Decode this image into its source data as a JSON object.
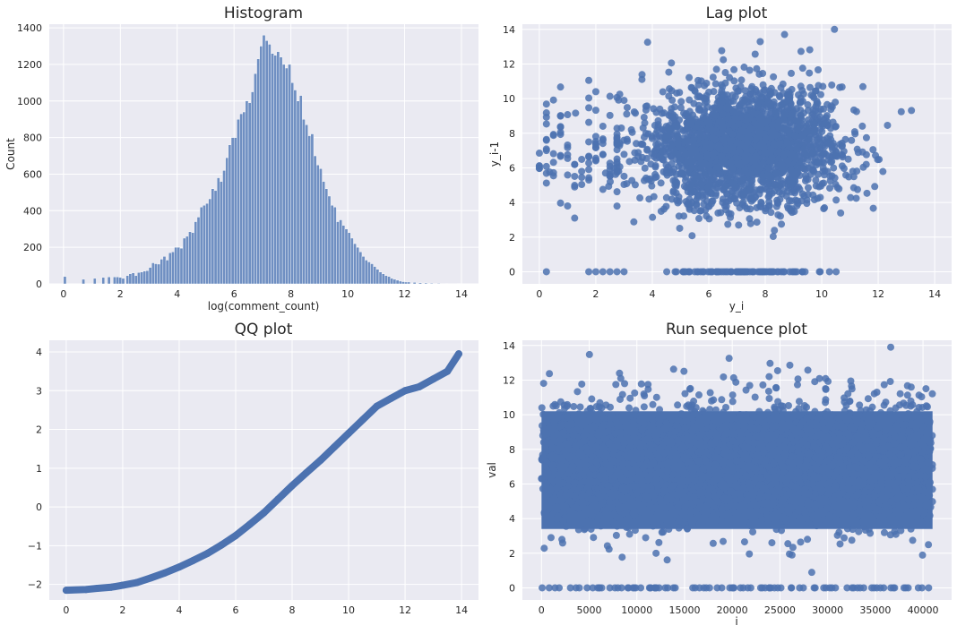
{
  "colors": {
    "panel_bg": "#eaeaf2",
    "grid": "#ffffff",
    "series": "#4c72b0",
    "bar": "#6f8fc2"
  },
  "chart_data": [
    {
      "type": "bar",
      "title": "Histogram",
      "xlabel": "log(comment_count)",
      "ylabel": "Count",
      "xlim": [
        -0.5,
        14.6
      ],
      "ylim": [
        0,
        1420
      ],
      "xticks": [
        "0",
        "2",
        "4",
        "6",
        "8",
        "10",
        "12",
        "14"
      ],
      "yticks": [
        "0",
        "200",
        "400",
        "600",
        "800",
        "1000",
        "1200",
        "1400"
      ],
      "bins": [
        [
          0.05,
          40
        ],
        [
          0.7,
          25
        ],
        [
          1.1,
          30
        ],
        [
          1.4,
          35
        ],
        [
          1.6,
          38
        ],
        [
          1.8,
          38
        ],
        [
          1.9,
          38
        ],
        [
          2.0,
          35
        ],
        [
          2.1,
          30
        ],
        [
          2.25,
          45
        ],
        [
          2.35,
          55
        ],
        [
          2.45,
          60
        ],
        [
          2.55,
          45
        ],
        [
          2.65,
          62
        ],
        [
          2.75,
          65
        ],
        [
          2.85,
          70
        ],
        [
          2.95,
          72
        ],
        [
          3.05,
          90
        ],
        [
          3.15,
          115
        ],
        [
          3.25,
          110
        ],
        [
          3.35,
          108
        ],
        [
          3.45,
          135
        ],
        [
          3.55,
          150
        ],
        [
          3.65,
          130
        ],
        [
          3.75,
          170
        ],
        [
          3.85,
          175
        ],
        [
          3.95,
          200
        ],
        [
          4.05,
          200
        ],
        [
          4.15,
          195
        ],
        [
          4.25,
          250
        ],
        [
          4.35,
          260
        ],
        [
          4.45,
          285
        ],
        [
          4.55,
          280
        ],
        [
          4.65,
          340
        ],
        [
          4.75,
          365
        ],
        [
          4.85,
          420
        ],
        [
          4.95,
          430
        ],
        [
          5.05,
          440
        ],
        [
          5.15,
          465
        ],
        [
          5.25,
          520
        ],
        [
          5.35,
          510
        ],
        [
          5.45,
          580
        ],
        [
          5.55,
          560
        ],
        [
          5.65,
          620
        ],
        [
          5.75,
          690
        ],
        [
          5.85,
          760
        ],
        [
          5.95,
          800
        ],
        [
          6.05,
          800
        ],
        [
          6.15,
          900
        ],
        [
          6.25,
          930
        ],
        [
          6.35,
          940
        ],
        [
          6.45,
          1000
        ],
        [
          6.55,
          990
        ],
        [
          6.65,
          1050
        ],
        [
          6.75,
          1150
        ],
        [
          6.85,
          1230
        ],
        [
          6.95,
          1300
        ],
        [
          7.05,
          1360
        ],
        [
          7.15,
          1330
        ],
        [
          7.25,
          1310
        ],
        [
          7.35,
          1260
        ],
        [
          7.45,
          1250
        ],
        [
          7.55,
          1270
        ],
        [
          7.65,
          1240
        ],
        [
          7.75,
          1200
        ],
        [
          7.85,
          1180
        ],
        [
          7.95,
          1200
        ],
        [
          8.05,
          1100
        ],
        [
          8.15,
          1060
        ],
        [
          8.25,
          1000
        ],
        [
          8.35,
          1030
        ],
        [
          8.45,
          900
        ],
        [
          8.55,
          870
        ],
        [
          8.65,
          810
        ],
        [
          8.75,
          820
        ],
        [
          8.85,
          700
        ],
        [
          8.95,
          650
        ],
        [
          9.05,
          630
        ],
        [
          9.15,
          560
        ],
        [
          9.25,
          520
        ],
        [
          9.35,
          480
        ],
        [
          9.45,
          430
        ],
        [
          9.55,
          420
        ],
        [
          9.65,
          340
        ],
        [
          9.75,
          350
        ],
        [
          9.85,
          320
        ],
        [
          9.95,
          300
        ],
        [
          10.05,
          280
        ],
        [
          10.15,
          250
        ],
        [
          10.25,
          220
        ],
        [
          10.35,
          200
        ],
        [
          10.45,
          175
        ],
        [
          10.55,
          150
        ],
        [
          10.65,
          130
        ],
        [
          10.75,
          120
        ],
        [
          10.85,
          110
        ],
        [
          10.95,
          95
        ],
        [
          11.05,
          80
        ],
        [
          11.15,
          65
        ],
        [
          11.25,
          55
        ],
        [
          11.35,
          45
        ],
        [
          11.45,
          40
        ],
        [
          11.55,
          30
        ],
        [
          11.65,
          25
        ],
        [
          11.75,
          20
        ],
        [
          11.85,
          15
        ],
        [
          11.95,
          12
        ],
        [
          12.05,
          10
        ],
        [
          12.15,
          10
        ],
        [
          12.35,
          8
        ],
        [
          12.55,
          6
        ],
        [
          12.75,
          5
        ],
        [
          12.95,
          4
        ],
        [
          13.2,
          3
        ],
        [
          13.5,
          2
        ],
        [
          13.9,
          2
        ]
      ]
    },
    {
      "type": "scatter",
      "title": "Lag plot",
      "xlabel": "y_i",
      "ylabel": "y_i-1",
      "xlim": [
        -0.6,
        14.6
      ],
      "ylim": [
        -0.7,
        14.3
      ],
      "xticks": [
        "0",
        "2",
        "4",
        "6",
        "8",
        "10",
        "12",
        "14"
      ],
      "yticks": [
        "0",
        "2",
        "4",
        "6",
        "8",
        "10",
        "12",
        "14"
      ],
      "center": [
        7.2,
        7.2
      ],
      "spread": [
        1.7,
        1.7
      ],
      "points": 2600
    },
    {
      "type": "line",
      "title": "QQ plot",
      "xlabel": "",
      "ylabel": "",
      "xlim": [
        -0.6,
        14.6
      ],
      "ylim": [
        -2.4,
        4.3
      ],
      "xticks": [
        "0",
        "2",
        "4",
        "6",
        "8",
        "10",
        "12",
        "14"
      ],
      "yticks": [
        "−2",
        "−1",
        "0",
        "1",
        "2",
        "3",
        "4"
      ],
      "x": [
        0,
        0.7,
        1.1,
        1.6,
        2.0,
        2.5,
        3.0,
        3.5,
        4.0,
        4.5,
        5.0,
        5.5,
        6.0,
        6.5,
        7.0,
        7.5,
        8.0,
        8.5,
        9.0,
        9.5,
        10.0,
        10.5,
        11.0,
        11.5,
        12.0,
        12.5,
        13.0,
        13.5,
        13.9
      ],
      "y": [
        -2.15,
        -2.13,
        -2.1,
        -2.07,
        -2.02,
        -1.95,
        -1.83,
        -1.7,
        -1.55,
        -1.38,
        -1.2,
        -0.98,
        -0.74,
        -0.45,
        -0.15,
        0.2,
        0.55,
        0.88,
        1.2,
        1.55,
        1.9,
        2.25,
        2.6,
        2.8,
        3.0,
        3.1,
        3.3,
        3.5,
        3.95
      ]
    },
    {
      "type": "scatter",
      "title": "Run sequence plot",
      "xlabel": "i",
      "ylabel": "val",
      "xlim": [
        -2000,
        43000
      ],
      "ylim": [
        -0.7,
        14.3
      ],
      "xticks": [
        "0",
        "5000",
        "10000",
        "15000",
        "20000",
        "25000",
        "30000",
        "35000",
        "40000"
      ],
      "yticks": [
        "0",
        "2",
        "4",
        "6",
        "8",
        "10",
        "12",
        "14"
      ],
      "n": 41000,
      "points": 2600
    }
  ]
}
